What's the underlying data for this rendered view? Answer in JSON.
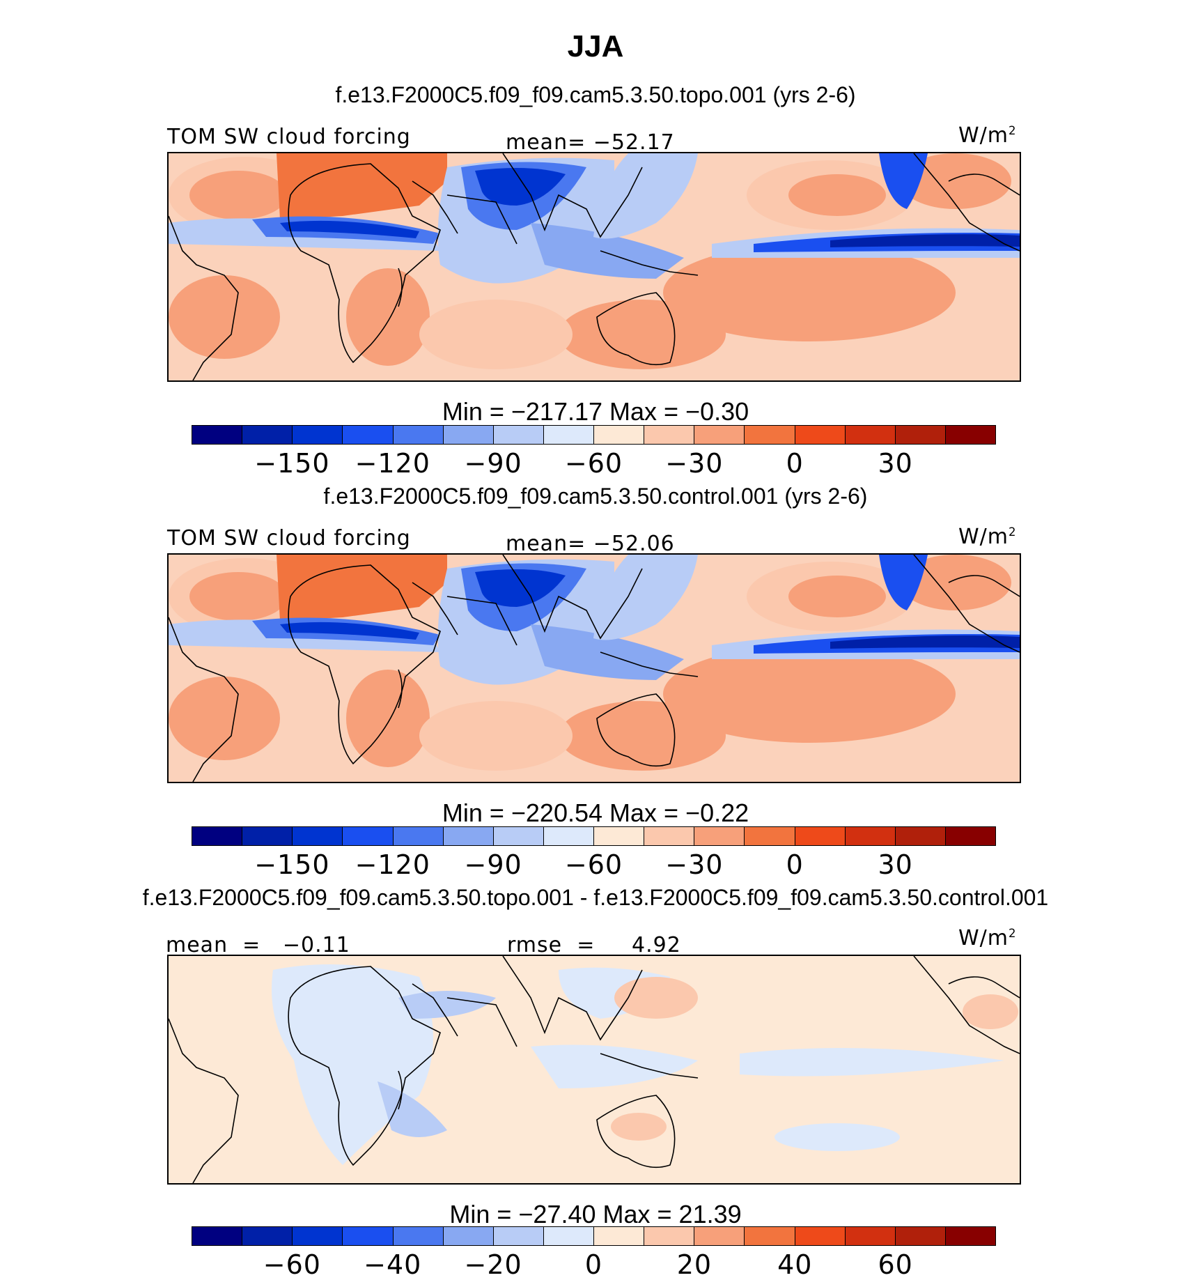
{
  "main_title": "JJA",
  "panels": [
    {
      "case_title": "f.e13.F2000C5.f09_f09.cam5.3.50.topo.001 (yrs 2-6)",
      "left_label": "TOM SW cloud forcing",
      "center_label": "mean= −52.17",
      "units_base": "W/m",
      "units_exp": "2",
      "minmax": "Min  =  −217.17  Max  =   −0.30",
      "cbar_ticks": [
        "−150",
        "−120",
        "−90",
        "−60",
        "−30",
        "0",
        "30"
      ],
      "field": "topo"
    },
    {
      "case_title": "f.e13.F2000C5.f09_f09.cam5.3.50.control.001 (yrs 2-6)",
      "left_label": "TOM SW cloud forcing",
      "center_label": "mean= −52.06",
      "units_base": "W/m",
      "units_exp": "2",
      "minmax": "Min  =  −220.54  Max  =   −0.22",
      "cbar_ticks": [
        "−150",
        "−120",
        "−90",
        "−60",
        "−30",
        "0",
        "30"
      ],
      "field": "control"
    },
    {
      "case_title": "f.e13.F2000C5.f09_f09.cam5.3.50.topo.001 - f.e13.F2000C5.f09_f09.cam5.3.50.control.001",
      "left_label": "mean  =   −0.11",
      "center_label": "rmse  =     4.92",
      "units_base": "W/m",
      "units_exp": "2",
      "minmax": "Min  =  −27.40  Max  =   21.39",
      "cbar_ticks": [
        "−60",
        "−40",
        "−20",
        "0",
        "20",
        "40",
        "60"
      ],
      "field": "diff"
    }
  ],
  "colorbar_colors": [
    "#000080",
    "#0020a8",
    "#0034d0",
    "#1a4ff0",
    "#4a78f0",
    "#88a8f2",
    "#b8ccf6",
    "#dde9fb",
    "#fde9d6",
    "#fbc8ad",
    "#f7a07a",
    "#f2743e",
    "#ee4a1a",
    "#d23010",
    "#b0200b",
    "#880000"
  ],
  "legend_note": "colour scale: dark blue (most negative) to dark red (most positive)"
}
